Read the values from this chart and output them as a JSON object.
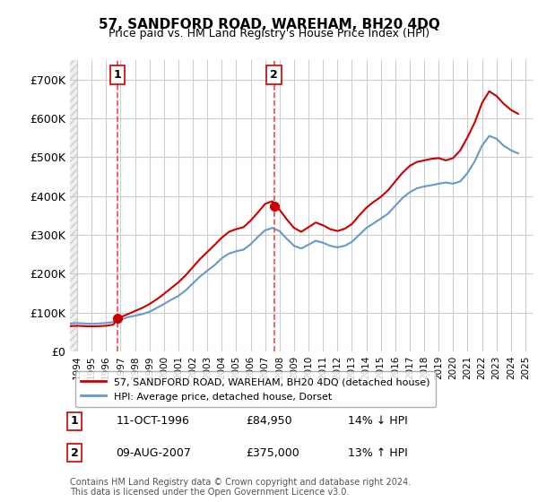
{
  "title": "57, SANDFORD ROAD, WAREHAM, BH20 4DQ",
  "subtitle": "Price paid vs. HM Land Registry's House Price Index (HPI)",
  "ylabel": "",
  "xlabel": "",
  "background_color": "#ffffff",
  "plot_bg_color": "#ffffff",
  "hatch_color": "#e0e0e0",
  "grid_color": "#cccccc",
  "sale1_date": 1996.79,
  "sale1_price": 84950,
  "sale1_label": "1",
  "sale2_date": 2007.61,
  "sale2_price": 375000,
  "sale2_label": "2",
  "hpi_line_color": "#6699cc",
  "price_line_color": "#cc0000",
  "dashed_line_color": "#ff4444",
  "legend1_text": "57, SANDFORD ROAD, WAREHAM, BH20 4DQ (detached house)",
  "legend2_text": "HPI: Average price, detached house, Dorset",
  "annotation1_label": "1",
  "annotation1_date": "11-OCT-1996",
  "annotation1_price": "£84,950",
  "annotation1_hpi": "14% ↓ HPI",
  "annotation2_label": "2",
  "annotation2_date": "09-AUG-2007",
  "annotation2_price": "£375,000",
  "annotation2_hpi": "13% ↑ HPI",
  "footer": "Contains HM Land Registry data © Crown copyright and database right 2024.\nThis data is licensed under the Open Government Licence v3.0.",
  "ylim": [
    0,
    750000
  ],
  "yticks": [
    0,
    100000,
    200000,
    300000,
    400000,
    500000,
    600000,
    700000
  ],
  "ytick_labels": [
    "£0",
    "£100K",
    "£200K",
    "£300K",
    "£400K",
    "£500K",
    "£600K",
    "£700K"
  ],
  "xlim_start": 1993.5,
  "xlim_end": 2025.5,
  "hpi_x": [
    1993.5,
    1994.0,
    1994.5,
    1995.0,
    1995.5,
    1996.0,
    1996.5,
    1997.0,
    1997.5,
    1998.0,
    1998.5,
    1999.0,
    1999.5,
    2000.0,
    2000.5,
    2001.0,
    2001.5,
    2002.0,
    2002.5,
    2003.0,
    2003.5,
    2004.0,
    2004.5,
    2005.0,
    2005.5,
    2006.0,
    2006.5,
    2007.0,
    2007.5,
    2008.0,
    2008.5,
    2009.0,
    2009.5,
    2010.0,
    2010.5,
    2011.0,
    2011.5,
    2012.0,
    2012.5,
    2013.0,
    2013.5,
    2014.0,
    2014.5,
    2015.0,
    2015.5,
    2016.0,
    2016.5,
    2017.0,
    2017.5,
    2018.0,
    2018.5,
    2019.0,
    2019.5,
    2020.0,
    2020.5,
    2021.0,
    2021.5,
    2022.0,
    2022.5,
    2023.0,
    2023.5,
    2024.0,
    2024.5
  ],
  "hpi_y": [
    72000,
    73000,
    72000,
    71000,
    72000,
    73000,
    76000,
    82000,
    88000,
    92000,
    96000,
    102000,
    112000,
    122000,
    133000,
    143000,
    157000,
    175000,
    193000,
    208000,
    222000,
    240000,
    252000,
    258000,
    262000,
    276000,
    295000,
    312000,
    318000,
    310000,
    290000,
    272000,
    265000,
    275000,
    285000,
    280000,
    272000,
    268000,
    272000,
    282000,
    300000,
    318000,
    330000,
    342000,
    355000,
    375000,
    395000,
    410000,
    420000,
    425000,
    428000,
    432000,
    435000,
    432000,
    438000,
    460000,
    490000,
    530000,
    555000,
    548000,
    530000,
    518000,
    510000
  ],
  "price_x": [
    1993.5,
    1994.0,
    1994.5,
    1995.0,
    1995.5,
    1996.0,
    1996.5,
    1996.79,
    1997.0,
    1997.5,
    1998.0,
    1998.5,
    1999.0,
    1999.5,
    2000.0,
    2000.5,
    2001.0,
    2001.5,
    2002.0,
    2002.5,
    2003.0,
    2003.5,
    2004.0,
    2004.5,
    2005.0,
    2005.5,
    2006.0,
    2006.5,
    2007.0,
    2007.5,
    2007.61,
    2008.0,
    2008.5,
    2009.0,
    2009.5,
    2010.0,
    2010.5,
    2011.0,
    2011.5,
    2012.0,
    2012.5,
    2013.0,
    2013.5,
    2014.0,
    2014.5,
    2015.0,
    2015.5,
    2016.0,
    2016.5,
    2017.0,
    2017.5,
    2018.0,
    2018.5,
    2019.0,
    2019.5,
    2020.0,
    2020.5,
    2021.0,
    2021.5,
    2022.0,
    2022.5,
    2023.0,
    2023.5,
    2024.0,
    2024.5
  ],
  "price_y": [
    65000,
    66000,
    65000,
    64500,
    65000,
    66000,
    69000,
    84950,
    88000,
    96000,
    104000,
    112000,
    122000,
    134000,
    148000,
    163000,
    178000,
    196000,
    217000,
    238000,
    256000,
    274000,
    293000,
    308000,
    315000,
    320000,
    337000,
    358000,
    380000,
    387000,
    375000,
    365000,
    340000,
    318000,
    308000,
    320000,
    332000,
    325000,
    315000,
    310000,
    316000,
    328000,
    350000,
    370000,
    385000,
    398000,
    415000,
    438000,
    460000,
    478000,
    488000,
    492000,
    496000,
    498000,
    492000,
    498000,
    518000,
    552000,
    590000,
    640000,
    670000,
    658000,
    638000,
    622000,
    612000
  ]
}
